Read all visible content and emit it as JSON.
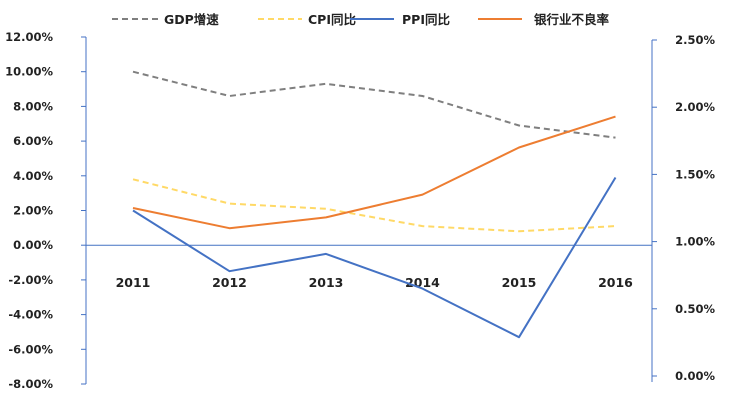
{
  "chart_data": {
    "type": "line",
    "title": "",
    "categories": [
      "2011",
      "2012",
      "2013",
      "2014",
      "2015",
      "2016"
    ],
    "y_left": {
      "ylim": [
        -8,
        12
      ],
      "ticks": [
        12,
        10,
        8,
        6,
        4,
        2,
        0,
        -2,
        -4,
        -6,
        -8
      ],
      "tick_labels": [
        "12.00%",
        "10.00%",
        "8.00%",
        "6.00%",
        "4.00%",
        "2.00%",
        "0.00%",
        "-2.00%",
        "-4.00%",
        "-6.00%",
        "-8.00%"
      ]
    },
    "y_right": {
      "ylim": [
        0,
        2.5
      ],
      "ticks": [
        2.5,
        2.0,
        1.5,
        1.0,
        0.5,
        0.0
      ],
      "tick_labels": [
        "2.50%",
        "2.00%",
        "1.50%",
        "1.00%",
        "0.50%",
        "0.00%"
      ]
    },
    "grid": false,
    "legend_position": "top",
    "series": [
      {
        "name": "GDP增速",
        "axis": "left",
        "color": "#7f7f7f",
        "dash": "dashed",
        "values": [
          10.0,
          8.6,
          9.3,
          8.6,
          6.9,
          6.2
        ]
      },
      {
        "name": "CPI同比",
        "axis": "left",
        "color": "#ffd966",
        "dash": "dashed",
        "values": [
          3.8,
          2.4,
          2.1,
          1.1,
          0.8,
          1.1
        ]
      },
      {
        "name": "PPI同比",
        "axis": "left",
        "color": "#4472c4",
        "dash": "solid",
        "values": [
          2.0,
          -1.5,
          -0.5,
          -2.5,
          -5.3,
          3.9
        ]
      },
      {
        "name": "银行业不良率",
        "axis": "right",
        "color": "#ed7d31",
        "dash": "solid",
        "values": [
          1.25,
          1.1,
          1.18,
          1.35,
          1.7,
          1.93
        ]
      }
    ]
  }
}
